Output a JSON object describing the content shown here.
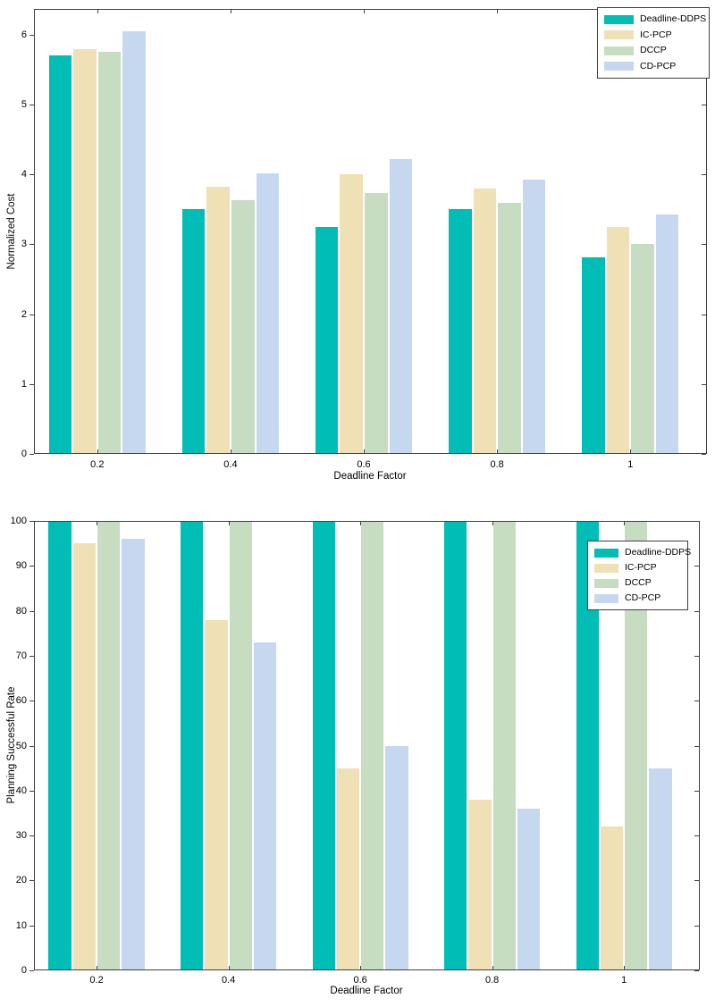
{
  "figure": {
    "background": "#FFFFFF",
    "axis_color": "#404040",
    "text_color": "#000000"
  },
  "chart_data": [
    {
      "type": "bar",
      "title": "",
      "xlabel": "Deadline Factor",
      "ylabel": "Normalized Cost",
      "categories": [
        0.2,
        0.4,
        0.6,
        0.8,
        1
      ],
      "category_labels": [
        "0.2",
        "0.4",
        "0.6",
        "0.8",
        "1"
      ],
      "xlim": [
        0.105,
        1.115
      ],
      "ylim": [
        0,
        6.37
      ],
      "yticks": [
        0,
        1,
        2,
        3,
        4,
        5,
        6
      ],
      "grid": false,
      "legend_position": "upper-right-inside",
      "legend_entries": [
        "Deadline-DDPS",
        "IC-PCP",
        "DCCP",
        "CD-PCP"
      ],
      "series": [
        {
          "name": "Deadline-DDPS",
          "color": "#00BDB5",
          "values": [
            5.7,
            3.5,
            3.25,
            3.5,
            2.82
          ]
        },
        {
          "name": "IC-PCP",
          "color": "#F0E0B6",
          "values": [
            5.8,
            3.82,
            4.0,
            3.8,
            3.25
          ]
        },
        {
          "name": "DCCP",
          "color": "#C6DDC1",
          "values": [
            5.75,
            3.63,
            3.73,
            3.6,
            3.0
          ]
        },
        {
          "name": "CD-PCP",
          "color": "#C6D8F0",
          "values": [
            6.05,
            4.02,
            4.22,
            3.93,
            3.43
          ]
        }
      ]
    },
    {
      "type": "bar",
      "title": "",
      "xlabel": "Deadline Factor",
      "ylabel": "Planning Successful Rate",
      "categories": [
        0.2,
        0.4,
        0.6,
        0.8,
        1
      ],
      "category_labels": [
        "0.2",
        "0.4",
        "0.6",
        "0.8",
        "1"
      ],
      "xlim": [
        0.105,
        1.115
      ],
      "ylim": [
        0,
        100
      ],
      "yticks": [
        0,
        10,
        20,
        30,
        40,
        50,
        60,
        70,
        80,
        90,
        100
      ],
      "grid": false,
      "legend_position": "upper-right-inside",
      "legend_entries": [
        "Deadline-DDPS",
        "IC-PCP",
        "DCCP",
        "CD-PCP"
      ],
      "series": [
        {
          "name": "Deadline-DDPS",
          "color": "#00BDB5",
          "values": [
            100,
            100,
            100,
            100,
            100
          ]
        },
        {
          "name": "IC-PCP",
          "color": "#F0E0B6",
          "values": [
            95,
            78,
            45,
            38,
            32
          ]
        },
        {
          "name": "DCCP",
          "color": "#C6DDC1",
          "values": [
            100,
            100,
            100,
            100,
            100
          ]
        },
        {
          "name": "CD-PCP",
          "color": "#C6D8F0",
          "values": [
            96,
            73,
            50,
            36,
            45
          ]
        }
      ]
    }
  ]
}
